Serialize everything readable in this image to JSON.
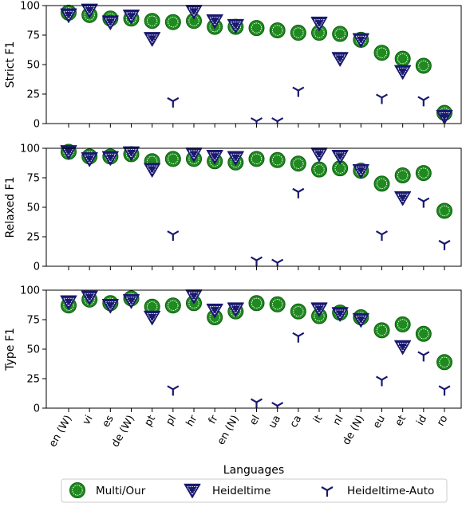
{
  "chart_data": {
    "type": "scatter",
    "xlabel": "Languages",
    "categories": [
      "en (W)",
      "vi",
      "es",
      "de (W)",
      "pt",
      "pl",
      "hr",
      "fr",
      "en (N)",
      "el",
      "ua",
      "ca",
      "it",
      "nl",
      "de (N)",
      "eu",
      "et",
      "id",
      "ro"
    ],
    "yticks": [
      "0",
      "25",
      "50",
      "75",
      "100"
    ],
    "legend": {
      "placement": "bottom-center"
    },
    "colors": {
      "multi": "#1f8a1f",
      "heideltime": "#191970",
      "auto": "#191970"
    },
    "series_names": [
      "Multi/Our",
      "Heideltime",
      "Heideltime-Auto"
    ],
    "panels": [
      {
        "ylabel": "Strict F1",
        "ylim": [
          0,
          100
        ],
        "series": [
          {
            "name": "Multi/Our",
            "values": [
              94,
              92,
              89,
              89,
              87,
              86,
              87,
              82,
              82,
              81,
              79,
              77,
              77,
              76,
              71,
              60,
              55,
              49,
              9
            ]
          },
          {
            "name": "Heideltime",
            "values": [
              92,
              96,
              86,
              91,
              72,
              null,
              95,
              87,
              83,
              null,
              null,
              null,
              85,
              55,
              71,
              null,
              44,
              null,
              6
            ]
          },
          {
            "name": "Heideltime-Auto",
            "values": [
              null,
              null,
              null,
              null,
              null,
              19,
              null,
              null,
              null,
              2,
              2,
              28,
              null,
              null,
              null,
              22,
              null,
              20,
              5
            ]
          }
        ]
      },
      {
        "ylabel": "Relaxed F1",
        "ylim": [
          0,
          100
        ],
        "series": [
          {
            "name": "Multi/Our",
            "values": [
              97,
              93,
              93,
              95,
              89,
              91,
              91,
              89,
              88,
              91,
              90,
              87,
              82,
              83,
              81,
              70,
              77,
              79,
              47
            ]
          },
          {
            "name": "Heideltime",
            "values": [
              97,
              91,
              92,
              96,
              82,
              null,
              95,
              93,
              92,
              null,
              null,
              null,
              95,
              93,
              81,
              null,
              58,
              null,
              null
            ]
          },
          {
            "name": "Heideltime-Auto",
            "values": [
              null,
              null,
              null,
              null,
              null,
              27,
              null,
              null,
              null,
              5,
              3,
              63,
              null,
              null,
              null,
              27,
              null,
              55,
              19
            ]
          }
        ]
      },
      {
        "ylabel": "Type F1",
        "ylim": [
          0,
          100
        ],
        "series": [
          {
            "name": "Multi/Our",
            "values": [
              87,
              92,
              89,
              93,
              86,
              87,
              89,
              77,
              82,
              89,
              88,
              82,
              78,
              81,
              77,
              66,
              71,
              63,
              39
            ]
          },
          {
            "name": "Heideltime",
            "values": [
              90,
              94,
              87,
              91,
              77,
              null,
              95,
              83,
              84,
              null,
              null,
              null,
              84,
              80,
              75,
              null,
              52,
              null,
              null
            ]
          },
          {
            "name": "Heideltime-Auto",
            "values": [
              null,
              null,
              null,
              null,
              null,
              16,
              null,
              null,
              null,
              5,
              2,
              61,
              null,
              null,
              null,
              24,
              null,
              45,
              16
            ]
          }
        ]
      }
    ]
  }
}
